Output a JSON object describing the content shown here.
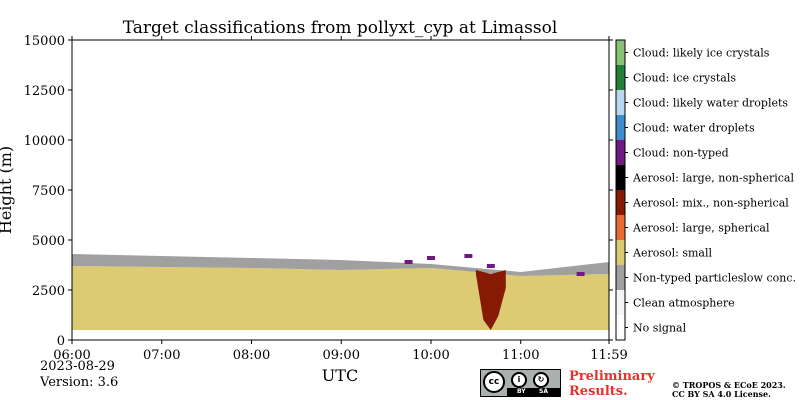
{
  "chart_data": {
    "type": "heatmap",
    "title": "Target classifications from pollyxt_cyp at Limassol",
    "xlabel": "UTC",
    "ylabel": "Height (m)",
    "xlim": [
      "06:00",
      "11:59"
    ],
    "ylim": [
      0,
      15000
    ],
    "x_ticks": [
      "06:00",
      "07:00",
      "08:00",
      "09:00",
      "10:00",
      "11:00",
      "11:59"
    ],
    "y_ticks": [
      0,
      2500,
      5000,
      7500,
      10000,
      12500,
      15000
    ],
    "colorbar": [
      {
        "label": "No signal",
        "color": "#ffffff"
      },
      {
        "label": "Clean atmosphere",
        "color": "#f5f5f5"
      },
      {
        "label": "Non-typed particleslow conc.",
        "color": "#a0a0a0"
      },
      {
        "label": "Aerosol: small",
        "color": "#dccb72"
      },
      {
        "label": "Aerosol: large, spherical",
        "color": "#ea6b31"
      },
      {
        "label": "Aerosol: mix., non-spherical",
        "color": "#861a05"
      },
      {
        "label": "Aerosol: large, non-spherical",
        "color": "#000000"
      },
      {
        "label": "Cloud: non-typed",
        "color": "#6e1a80"
      },
      {
        "label": "Cloud: water droplets",
        "color": "#3f8bcb"
      },
      {
        "label": "Cloud: likely water droplets",
        "color": "#b9d8f0"
      },
      {
        "label": "Cloud: ice crystals",
        "color": "#237e3a"
      },
      {
        "label": "Cloud: likely ice crystals",
        "color": "#8bc177"
      }
    ],
    "series": [
      {
        "class": "Aerosol: small",
        "x": [
          "06:00",
          "07:00",
          "08:00",
          "09:00",
          "10:00",
          "11:00",
          "11:59"
        ],
        "bottom": [
          500,
          500,
          500,
          500,
          500,
          500,
          500
        ],
        "top": [
          3700,
          3650,
          3600,
          3500,
          3600,
          3200,
          3300
        ]
      },
      {
        "class": "Non-typed particleslow conc.",
        "x": [
          "06:00",
          "07:00",
          "08:00",
          "09:00",
          "10:00",
          "11:00",
          "11:59"
        ],
        "bottom": [
          3700,
          3650,
          3600,
          3500,
          3600,
          3200,
          3300
        ],
        "top": [
          4300,
          4200,
          4100,
          4000,
          3800,
          3400,
          3900
        ]
      },
      {
        "class": "Aerosol: mix., non-spherical",
        "x": [
          "10:30",
          "10:35",
          "10:40",
          "10:45",
          "10:50"
        ],
        "bottom": [
          3300,
          1000,
          500,
          1200,
          2600
        ],
        "top": [
          3500,
          3400,
          3300,
          3400,
          3500
        ]
      },
      {
        "class": "Cloud: non-typed",
        "x": [
          "09:45",
          "10:00",
          "10:25",
          "10:40",
          "11:40"
        ],
        "height": [
          3900,
          4100,
          4200,
          3700,
          3300
        ]
      }
    ]
  },
  "footer": {
    "date": "2023-08-29",
    "version": "Version: 3.6",
    "preliminary": "Preliminary Results.",
    "copyright_line1": "© TROPOS & ECoE 2023.",
    "copyright_line2": "CC BY SA 4.0 License.",
    "badge_cc": "cc",
    "badge_by": "BY",
    "badge_sa": "SA"
  }
}
